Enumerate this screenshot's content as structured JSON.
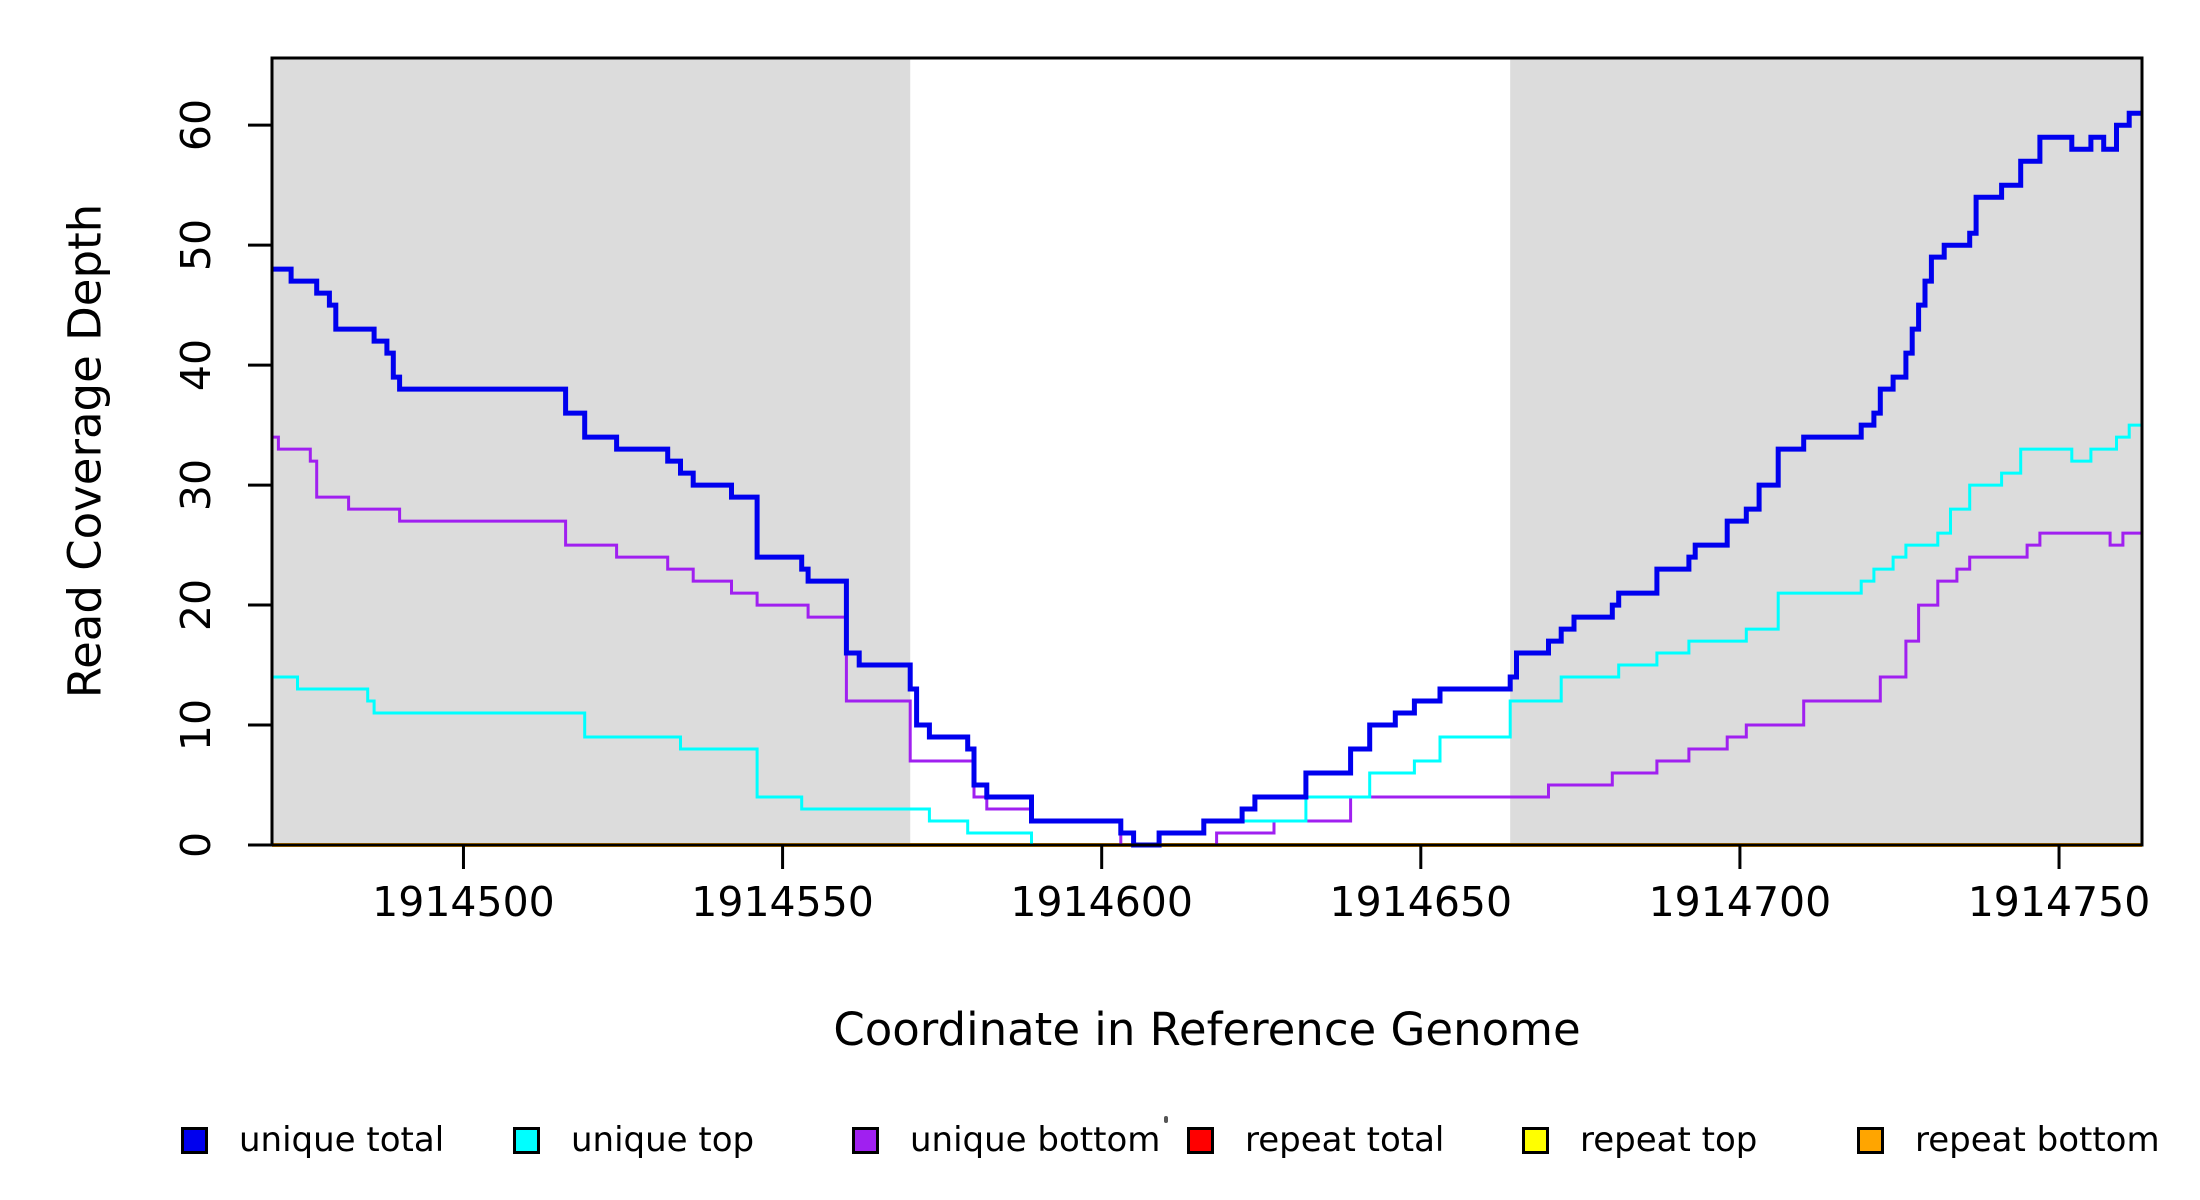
{
  "figure": {
    "x_axis_title": "Coordinate in Reference Genome",
    "y_axis_title": "Read Coverage Depth"
  },
  "chart_data": {
    "type": "line",
    "subtype": "step",
    "title": "",
    "xlabel": "Coordinate in Reference Genome",
    "ylabel": "Read Coverage Depth",
    "xlim": [
      1914470,
      1914763
    ],
    "ylim": [
      0,
      65.6
    ],
    "grid": false,
    "legend_position": "bottom",
    "plot_background": "#FFFFFF",
    "shaded_region_color": "#DCDCDC",
    "shaded_regions": [
      {
        "from": 1914470,
        "to": 1914570
      },
      {
        "from": 1914664,
        "to": 1914763
      }
    ],
    "x_ticks": [
      {
        "value": 1914500,
        "label": "1914500"
      },
      {
        "value": 1914550,
        "label": "1914550"
      },
      {
        "value": 1914600,
        "label": "1914600"
      },
      {
        "value": 1914650,
        "label": "1914650"
      },
      {
        "value": 1914700,
        "label": "1914700"
      },
      {
        "value": 1914750,
        "label": "1914750"
      }
    ],
    "y_ticks": [
      {
        "value": 0,
        "label": "0"
      },
      {
        "value": 10,
        "label": "10"
      },
      {
        "value": 20,
        "label": "20"
      },
      {
        "value": 30,
        "label": "30"
      },
      {
        "value": 40,
        "label": "40"
      },
      {
        "value": 50,
        "label": "50"
      },
      {
        "value": 60,
        "label": "60"
      }
    ],
    "series": [
      {
        "name": "unique total",
        "color": "#0000EE",
        "line_width": 5,
        "z": 6,
        "steps": [
          [
            1914470,
            48
          ],
          [
            1914473,
            47
          ],
          [
            1914477,
            46
          ],
          [
            1914479,
            45
          ],
          [
            1914480,
            43
          ],
          [
            1914486,
            42
          ],
          [
            1914488,
            41
          ],
          [
            1914489,
            39
          ],
          [
            1914490,
            38
          ],
          [
            1914516,
            36
          ],
          [
            1914519,
            34
          ],
          [
            1914524,
            33
          ],
          [
            1914532,
            32
          ],
          [
            1914534,
            31
          ],
          [
            1914536,
            30
          ],
          [
            1914542,
            29
          ],
          [
            1914546,
            24
          ],
          [
            1914553,
            23
          ],
          [
            1914554,
            22
          ],
          [
            1914560,
            16
          ],
          [
            1914562,
            15
          ],
          [
            1914570,
            13
          ],
          [
            1914571,
            10
          ],
          [
            1914573,
            9
          ],
          [
            1914579,
            8
          ],
          [
            1914580,
            5
          ],
          [
            1914582,
            4
          ],
          [
            1914589,
            2
          ],
          [
            1914603,
            1
          ],
          [
            1914605,
            0
          ],
          [
            1914609,
            1
          ],
          [
            1914616,
            2
          ],
          [
            1914622,
            3
          ],
          [
            1914624,
            4
          ],
          [
            1914632,
            6
          ],
          [
            1914639,
            8
          ],
          [
            1914642,
            10
          ],
          [
            1914646,
            11
          ],
          [
            1914649,
            12
          ],
          [
            1914653,
            13
          ],
          [
            1914664,
            14
          ],
          [
            1914665,
            16
          ],
          [
            1914670,
            17
          ],
          [
            1914672,
            18
          ],
          [
            1914674,
            19
          ],
          [
            1914680,
            20
          ],
          [
            1914681,
            21
          ],
          [
            1914687,
            23
          ],
          [
            1914692,
            24
          ],
          [
            1914693,
            25
          ],
          [
            1914698,
            27
          ],
          [
            1914701,
            28
          ],
          [
            1914703,
            30
          ],
          [
            1914706,
            33
          ],
          [
            1914710,
            34
          ],
          [
            1914719,
            35
          ],
          [
            1914721,
            36
          ],
          [
            1914722,
            38
          ],
          [
            1914724,
            39
          ],
          [
            1914726,
            41
          ],
          [
            1914727,
            43
          ],
          [
            1914728,
            45
          ],
          [
            1914729,
            47
          ],
          [
            1914730,
            49
          ],
          [
            1914732,
            50
          ],
          [
            1914736,
            51
          ],
          [
            1914737,
            54
          ],
          [
            1914741,
            55
          ],
          [
            1914744,
            57
          ],
          [
            1914747,
            59
          ],
          [
            1914752,
            58
          ],
          [
            1914755,
            59
          ],
          [
            1914757,
            58
          ],
          [
            1914759,
            60
          ],
          [
            1914761,
            61
          ]
        ]
      },
      {
        "name": "unique top",
        "color": "#00FFFF",
        "line_width": 3,
        "z": 5,
        "steps": [
          [
            1914470,
            14
          ],
          [
            1914474,
            13
          ],
          [
            1914485,
            12
          ],
          [
            1914486,
            11
          ],
          [
            1914519,
            9
          ],
          [
            1914534,
            8
          ],
          [
            1914546,
            4
          ],
          [
            1914553,
            3
          ],
          [
            1914573,
            2
          ],
          [
            1914579,
            1
          ],
          [
            1914589,
            0
          ],
          [
            1914609,
            1
          ],
          [
            1914616,
            2
          ],
          [
            1914632,
            4
          ],
          [
            1914642,
            6
          ],
          [
            1914649,
            7
          ],
          [
            1914653,
            9
          ],
          [
            1914664,
            12
          ],
          [
            1914672,
            14
          ],
          [
            1914681,
            15
          ],
          [
            1914687,
            16
          ],
          [
            1914692,
            17
          ],
          [
            1914701,
            18
          ],
          [
            1914706,
            21
          ],
          [
            1914719,
            22
          ],
          [
            1914721,
            23
          ],
          [
            1914724,
            24
          ],
          [
            1914726,
            25
          ],
          [
            1914731,
            26
          ],
          [
            1914733,
            28
          ],
          [
            1914736,
            30
          ],
          [
            1914741,
            31
          ],
          [
            1914744,
            33
          ],
          [
            1914752,
            32
          ],
          [
            1914755,
            33
          ],
          [
            1914759,
            34
          ],
          [
            1914761,
            35
          ]
        ]
      },
      {
        "name": "unique bottom",
        "color": "#A020F0",
        "line_width": 3,
        "z": 4,
        "steps": [
          [
            1914470,
            34
          ],
          [
            1914471,
            33
          ],
          [
            1914476,
            32
          ],
          [
            1914477,
            29
          ],
          [
            1914482,
            28
          ],
          [
            1914490,
            27
          ],
          [
            1914516,
            25
          ],
          [
            1914524,
            24
          ],
          [
            1914532,
            23
          ],
          [
            1914536,
            22
          ],
          [
            1914542,
            21
          ],
          [
            1914546,
            20
          ],
          [
            1914554,
            19
          ],
          [
            1914560,
            12
          ],
          [
            1914570,
            7
          ],
          [
            1914580,
            4
          ],
          [
            1914582,
            3
          ],
          [
            1914589,
            2
          ],
          [
            1914603,
            0
          ],
          [
            1914618,
            1
          ],
          [
            1914627,
            2
          ],
          [
            1914639,
            4
          ],
          [
            1914670,
            5
          ],
          [
            1914680,
            6
          ],
          [
            1914687,
            7
          ],
          [
            1914692,
            8
          ],
          [
            1914698,
            9
          ],
          [
            1914701,
            10
          ],
          [
            1914710,
            12
          ],
          [
            1914722,
            14
          ],
          [
            1914726,
            17
          ],
          [
            1914728,
            20
          ],
          [
            1914731,
            22
          ],
          [
            1914734,
            23
          ],
          [
            1914736,
            24
          ],
          [
            1914745,
            25
          ],
          [
            1914747,
            26
          ],
          [
            1914758,
            25
          ],
          [
            1914760,
            26
          ]
        ]
      },
      {
        "name": "repeat total",
        "color": "#FF0000",
        "line_width": 3,
        "z": 1,
        "steps": [
          [
            1914470,
            0
          ]
        ]
      },
      {
        "name": "repeat top",
        "color": "#FFFF00",
        "line_width": 3,
        "z": 2,
        "steps": [
          [
            1914470,
            0
          ]
        ]
      },
      {
        "name": "repeat bottom",
        "color": "#FFA500",
        "line_width": 4,
        "z": 3,
        "steps": [
          [
            1914470,
            0
          ]
        ]
      }
    ]
  }
}
